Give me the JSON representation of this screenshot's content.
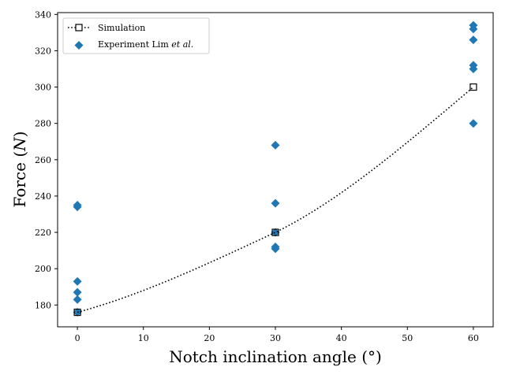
{
  "chart_data": {
    "type": "scatter",
    "xlabel": "Notch inclination angle (°)",
    "ylabel_prefix": "Force (",
    "ylabel_var": "N",
    "ylabel_suffix": ")",
    "xlim": [
      -3,
      63
    ],
    "ylim": [
      168,
      341
    ],
    "xticks": [
      0,
      10,
      20,
      30,
      40,
      50,
      60
    ],
    "yticks": [
      180,
      200,
      220,
      240,
      260,
      280,
      300,
      320,
      340
    ],
    "legend_position": "top-left",
    "series": [
      {
        "name": "Simulation",
        "style": "dotted-line-square",
        "color": "#000000",
        "x": [
          0,
          30,
          60
        ],
        "y": [
          176,
          220,
          300
        ]
      },
      {
        "name_main": "Experiment Lim ",
        "name_italic": "et al.",
        "style": "diamond",
        "color": "#1f77b4",
        "x": [
          0,
          0,
          0,
          0,
          0,
          0,
          30,
          30,
          30,
          30,
          30,
          60,
          60,
          60,
          60,
          60,
          60
        ],
        "y": [
          235,
          234,
          193,
          187,
          183,
          176,
          268,
          236,
          220,
          212,
          211,
          334,
          332,
          326,
          312,
          310,
          280
        ]
      }
    ]
  }
}
